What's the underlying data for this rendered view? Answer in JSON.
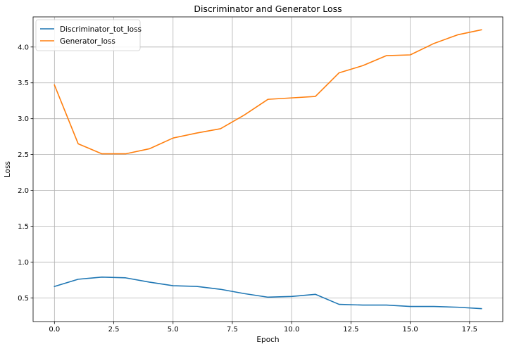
{
  "chart_data": {
    "type": "line",
    "title": "Discriminator and Generator Loss",
    "xlabel": "Epoch",
    "ylabel": "Loss",
    "x": [
      0,
      1,
      2,
      3,
      4,
      5,
      6,
      7,
      8,
      9,
      10,
      11,
      12,
      13,
      14,
      15,
      16,
      17,
      18
    ],
    "xlim": [
      -0.9,
      18.9
    ],
    "ylim": [
      0.17,
      4.42
    ],
    "xticks": [
      0.0,
      2.5,
      5.0,
      7.5,
      10.0,
      12.5,
      15.0,
      17.5
    ],
    "xtick_labels": [
      "0.0",
      "2.5",
      "5.0",
      "7.5",
      "10.0",
      "12.5",
      "15.0",
      "17.5"
    ],
    "yticks": [
      0.5,
      1.0,
      1.5,
      2.0,
      2.5,
      3.0,
      3.5,
      4.0
    ],
    "ytick_labels": [
      "0.5",
      "1.0",
      "1.5",
      "2.0",
      "2.5",
      "3.0",
      "3.5",
      "4.0"
    ],
    "grid": true,
    "legend_position": "top-left",
    "series": [
      {
        "name": "Discriminator_tot_loss",
        "color": "#1f77b4",
        "values": [
          0.66,
          0.76,
          0.79,
          0.78,
          0.72,
          0.67,
          0.66,
          0.62,
          0.56,
          0.51,
          0.52,
          0.55,
          0.41,
          0.4,
          0.4,
          0.38,
          0.38,
          0.37,
          0.35
        ]
      },
      {
        "name": "Generator_loss",
        "color": "#ff7f0e",
        "values": [
          3.47,
          2.65,
          2.51,
          2.51,
          2.58,
          2.73,
          2.8,
          2.86,
          3.05,
          3.27,
          3.29,
          3.31,
          3.64,
          3.74,
          3.88,
          3.89,
          4.05,
          4.17,
          4.24
        ]
      }
    ]
  }
}
